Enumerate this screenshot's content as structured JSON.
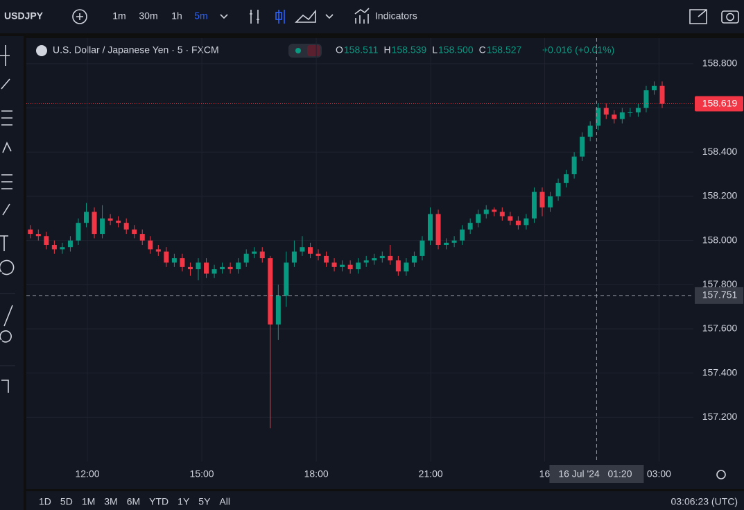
{
  "toolbar": {
    "symbol": "USDJPY",
    "intervals": [
      "1m",
      "30m",
      "1h",
      "5m"
    ],
    "active_interval": 3,
    "indicators": "Indicators"
  },
  "legend": {
    "title": "U.S. Dollar / Japanese Yen · 5 · FXCM",
    "ohlc": [
      {
        "key": "O",
        "text": "158.511"
      },
      {
        "key": "H",
        "text": "158.539"
      },
      {
        "key": "L",
        "text": "158.500"
      },
      {
        "key": "C",
        "text": "158.527"
      }
    ],
    "change": "+0.016 (+0.01%)"
  },
  "bottom_bar": {
    "ranges": [
      "1D",
      "5D",
      "1M",
      "3M",
      "6M",
      "YTD",
      "1Y",
      "5Y",
      "All"
    ],
    "clock": "03:06:23 (UTC)"
  },
  "chart_data": {
    "type": "candlestick",
    "up_color": "#089981",
    "down_color": "#f23645",
    "grid": true,
    "xlim": [
      -0.5,
      82.9
    ],
    "xticks": [
      {
        "value": 7.13,
        "label": "12:00"
      },
      {
        "value": 21.44,
        "label": "15:00"
      },
      {
        "value": 35.75,
        "label": "18:00"
      },
      {
        "value": 50.06,
        "label": "21:00"
      },
      {
        "value": 64.3,
        "label": "16"
      },
      {
        "value": 78.6,
        "label": "03:00"
      }
    ],
    "ylim": [
      157.0,
      158.916
    ],
    "yticks": [
      {
        "value": 157.2,
        "label": "157.200"
      },
      {
        "value": 157.4,
        "label": "157.400"
      },
      {
        "value": 157.6,
        "label": "157.600"
      },
      {
        "value": 157.8,
        "label": "157.800"
      },
      {
        "value": 158.0,
        "label": "158.000"
      },
      {
        "value": 158.2,
        "label": "158.200"
      },
      {
        "value": 158.4,
        "label": "158.400"
      },
      {
        "value": 158.6,
        "label": "158.600"
      },
      {
        "value": 158.8,
        "label": "158.800"
      }
    ],
    "last_price": 158.619,
    "crosshair": {
      "x": 70.8,
      "price": 157.751,
      "time_label": "16 Jul '24   01:20"
    },
    "open": [
      158.05,
      158.03,
      158.02,
      157.98,
      157.96,
      157.97,
      158,
      158.08,
      158.13,
      158.03,
      158.1,
      158.09,
      158.08,
      158.05,
      158.03,
      158,
      157.96,
      157.95,
      157.9,
      157.92,
      157.88,
      157.87,
      157.9,
      157.85,
      157.87,
      157.88,
      157.87,
      157.9,
      157.94,
      157.95,
      157.92,
      157.62,
      157.75,
      157.9,
      157.95,
      157.97,
      157.94,
      157.93,
      157.9,
      157.88,
      157.89,
      157.87,
      157.9,
      157.91,
      157.92,
      157.93,
      157.91,
      157.86,
      157.9,
      157.93,
      158,
      158.12,
      157.98,
      157.99,
      158,
      158.05,
      158.08,
      158.12,
      158.14,
      158.13,
      158.11,
      158.09,
      158.07,
      158.1,
      158.22,
      158.15,
      158.2,
      158.26,
      158.3,
      158.38,
      158.47,
      158.52,
      158.6,
      158.57,
      158.55,
      158.58,
      158.58,
      158.6,
      158.68,
      158.7
    ],
    "high": [
      158.07,
      158.05,
      158.04,
      158,
      157.99,
      158.02,
      158.1,
      158.17,
      158.15,
      158.16,
      158.12,
      158.11,
      158.1,
      158.07,
      158.05,
      158.02,
      157.98,
      157.97,
      157.94,
      157.94,
      157.9,
      157.92,
      157.92,
      157.89,
      157.9,
      157.9,
      157.92,
      157.96,
      157.97,
      157.97,
      157.93,
      157.8,
      157.95,
      158,
      158.02,
      157.99,
      157.96,
      157.95,
      157.92,
      157.91,
      157.91,
      157.92,
      157.93,
      157.94,
      157.95,
      157.98,
      157.93,
      157.92,
      157.95,
      158.02,
      158.15,
      158.14,
      158.01,
      158.02,
      158.07,
      158.1,
      158.14,
      158.16,
      158.15,
      158.15,
      158.13,
      158.11,
      158.12,
      158.24,
      158.24,
      158.22,
      158.28,
      158.32,
      158.4,
      158.49,
      158.54,
      158.62,
      158.62,
      158.59,
      158.6,
      158.6,
      158.62,
      158.7,
      158.72,
      158.72
    ],
    "low": [
      158.01,
      158,
      157.96,
      157.94,
      157.94,
      157.95,
      157.98,
      158.06,
      158.01,
      158.01,
      158.07,
      158.06,
      158.03,
      158.01,
      157.98,
      157.94,
      157.93,
      157.88,
      157.88,
      157.86,
      157.84,
      157.82,
      157.83,
      157.83,
      157.85,
      157.85,
      157.85,
      157.88,
      157.92,
      157.9,
      157.15,
      157.55,
      157.7,
      157.88,
      157.93,
      157.92,
      157.91,
      157.88,
      157.86,
      157.86,
      157.85,
      157.85,
      157.88,
      157.89,
      157.9,
      157.89,
      157.84,
      157.84,
      157.88,
      157.91,
      157.98,
      157.96,
      157.96,
      157.97,
      157.98,
      158.03,
      158.06,
      158.1,
      158.11,
      158.09,
      158.07,
      158.05,
      158.05,
      158.08,
      158.11,
      158.13,
      158.18,
      158.24,
      158.28,
      158.36,
      158.45,
      158.5,
      158.55,
      158.53,
      158.53,
      158.56,
      158.56,
      158.58,
      158.66,
      158.6
    ],
    "close": [
      158.03,
      158.02,
      157.98,
      157.96,
      157.97,
      158,
      158.08,
      158.13,
      158.03,
      158.1,
      158.09,
      158.08,
      158.05,
      158.03,
      158,
      157.96,
      157.95,
      157.9,
      157.92,
      157.88,
      157.87,
      157.9,
      157.85,
      157.87,
      157.88,
      157.87,
      157.9,
      157.94,
      157.95,
      157.92,
      157.62,
      157.75,
      157.9,
      157.95,
      157.97,
      157.94,
      157.93,
      157.9,
      157.88,
      157.89,
      157.87,
      157.9,
      157.91,
      157.92,
      157.93,
      157.91,
      157.86,
      157.9,
      157.93,
      158,
      158.12,
      157.98,
      157.99,
      158,
      158.05,
      158.08,
      158.12,
      158.14,
      158.13,
      158.11,
      158.09,
      158.07,
      158.1,
      158.22,
      158.15,
      158.2,
      158.26,
      158.3,
      158.38,
      158.47,
      158.52,
      158.6,
      158.57,
      158.55,
      158.58,
      158.58,
      158.6,
      158.68,
      158.7,
      158.619
    ]
  }
}
